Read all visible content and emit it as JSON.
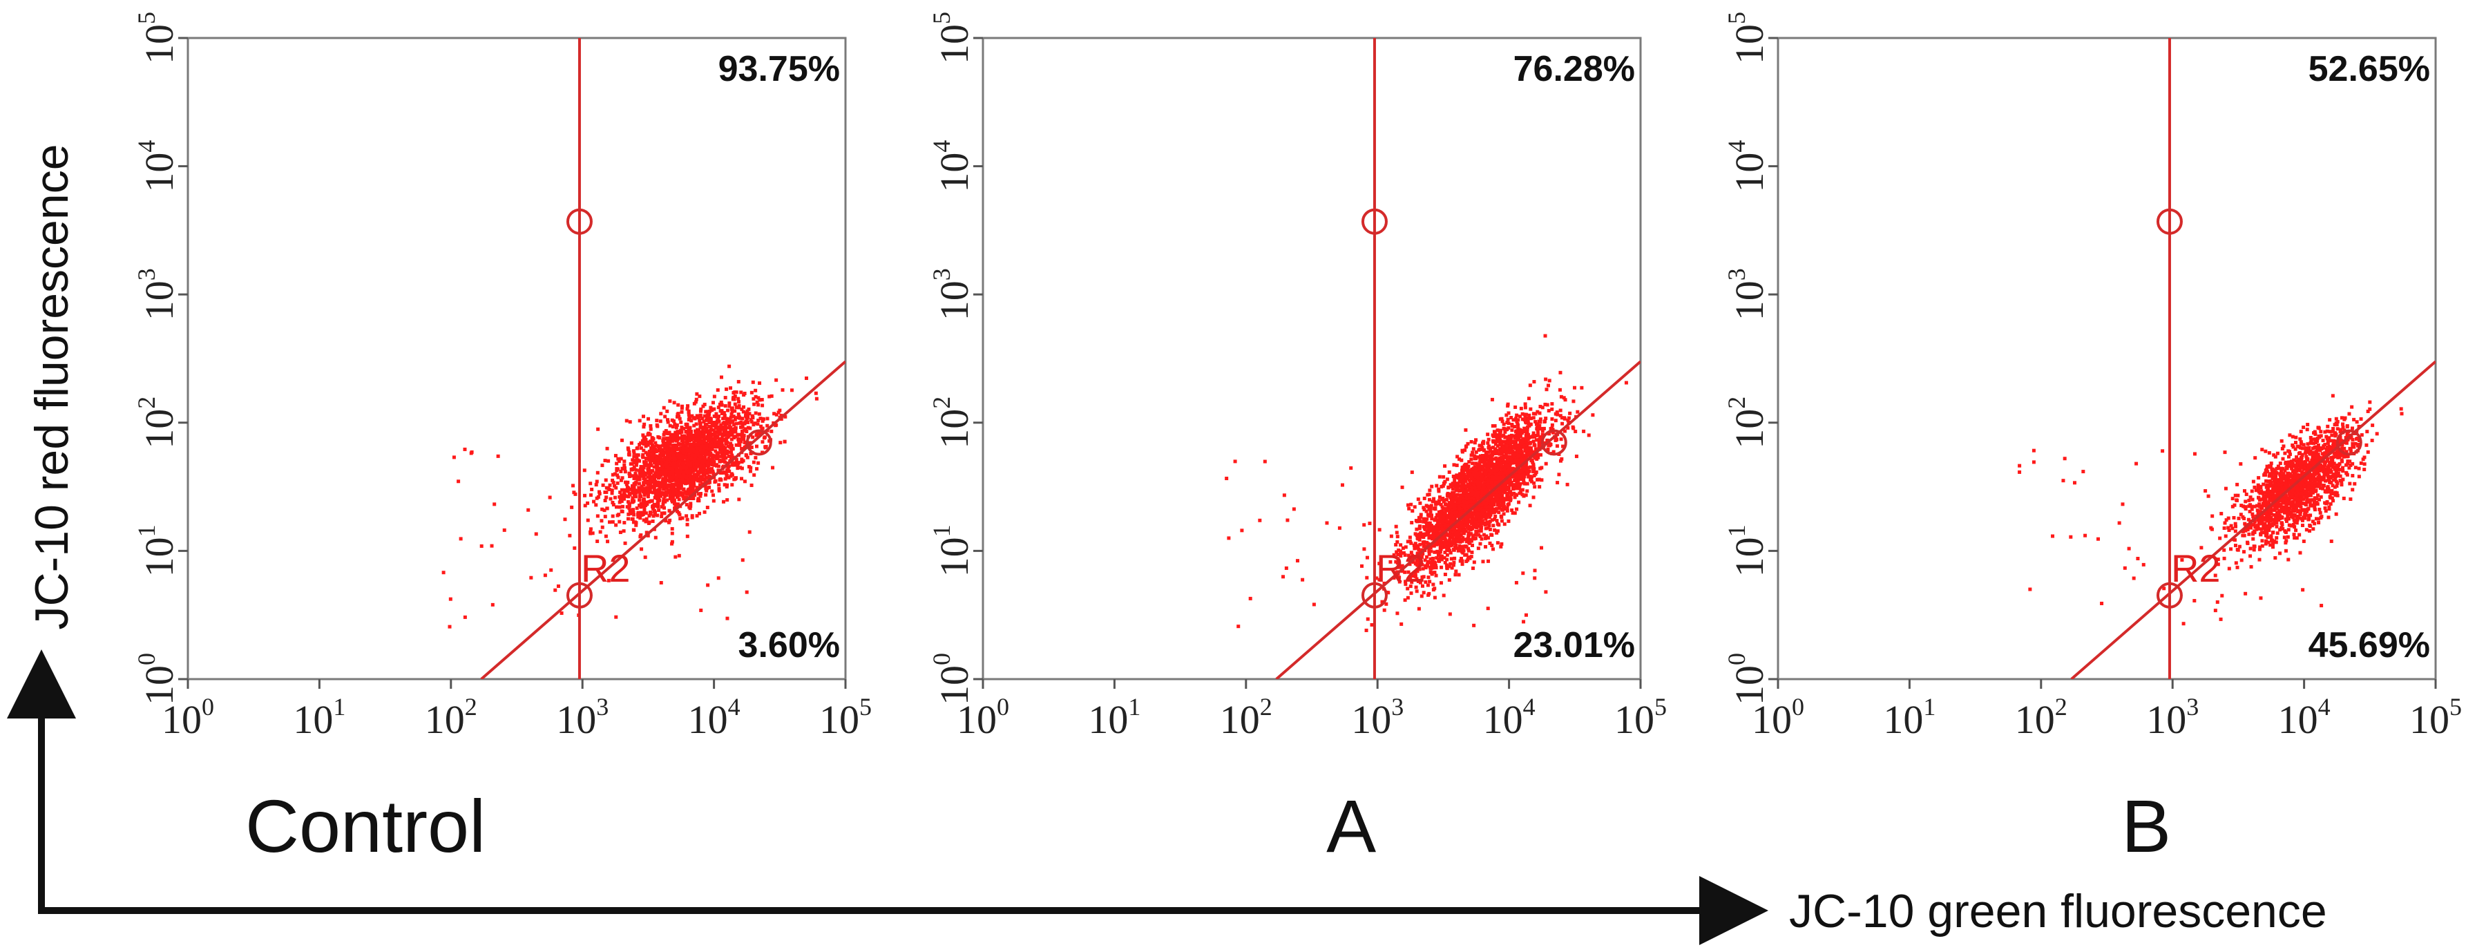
{
  "chart_data": {
    "type": "scatter",
    "x_axis_label": "JC-10 green fluorescence",
    "y_axis_label": "JC-10 red fluorescence",
    "x_scale": "log",
    "y_scale": "log",
    "xlim": [
      1,
      100000
    ],
    "ylim": [
      1,
      100000
    ],
    "x_ticks": [
      1,
      10,
      100,
      1000,
      10000,
      100000
    ],
    "y_ticks": [
      1,
      10,
      100,
      1000,
      10000,
      100000
    ],
    "tick_base": "10",
    "tick_exponents": [
      "0",
      "1",
      "2",
      "3",
      "4",
      "5"
    ],
    "point_color": "#ff1a1a",
    "gate_color": "#d42a2a",
    "gate_name": "R2",
    "gates": {
      "vertical_line_x": 950,
      "vertical_marker_y": 3700,
      "diagonal_line": [
        [
          170,
          1
        ],
        [
          100000,
          300
        ]
      ],
      "diagonal_markers": [
        [
          950,
          4.5
        ],
        [
          22000,
          70
        ]
      ]
    },
    "panels": [
      {
        "name": "Control",
        "upper_percent": "93.75%",
        "lower_percent": "3.60%",
        "cluster": {
          "x_center": 6000,
          "y_center": 50,
          "x_spread_log": 0.28,
          "y_spread_log": 0.22,
          "correlation": 0.6,
          "count": 2200
        }
      },
      {
        "name": "A",
        "upper_percent": "76.28%",
        "lower_percent": "23.01%",
        "cluster": {
          "x_center": 6000,
          "y_center": 28,
          "x_spread_log": 0.26,
          "y_spread_log": 0.3,
          "correlation": 0.8,
          "count": 2800
        }
      },
      {
        "name": "B",
        "upper_percent": "52.65%",
        "lower_percent": "45.69%",
        "cluster": {
          "x_center": 9000,
          "y_center": 32,
          "x_spread_log": 0.22,
          "y_spread_log": 0.22,
          "correlation": 0.7,
          "count": 1600
        }
      }
    ]
  }
}
